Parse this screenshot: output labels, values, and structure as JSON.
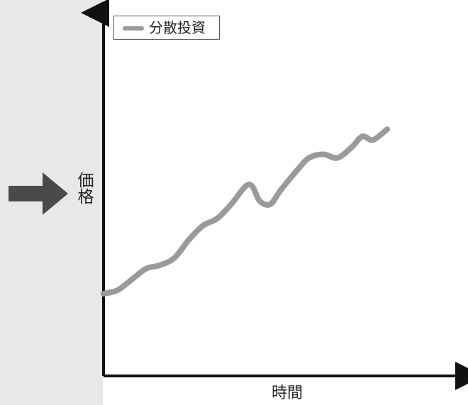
{
  "chart_data": {
    "type": "line",
    "title": "",
    "xlabel": "時間",
    "ylabel": "価格",
    "ylim": [
      0,
      100
    ],
    "xlim": [
      0,
      100
    ],
    "grid": false,
    "legend_position": "top-left",
    "series": [
      {
        "name": "分散投資",
        "color": "#9a9a9a",
        "points": [
          [
            0,
            23
          ],
          [
            4,
            24
          ],
          [
            8,
            27
          ],
          [
            12,
            30
          ],
          [
            16,
            31
          ],
          [
            20,
            33
          ],
          [
            24,
            38
          ],
          [
            28,
            42
          ],
          [
            32,
            44
          ],
          [
            36,
            48
          ],
          [
            40,
            53
          ],
          [
            42,
            53
          ],
          [
            44,
            49
          ],
          [
            47,
            48
          ],
          [
            50,
            52
          ],
          [
            55,
            58
          ],
          [
            58,
            61
          ],
          [
            62,
            62
          ],
          [
            66,
            61
          ],
          [
            70,
            64
          ],
          [
            73,
            67
          ],
          [
            76,
            66
          ],
          [
            80,
            69
          ]
        ]
      }
    ]
  }
}
